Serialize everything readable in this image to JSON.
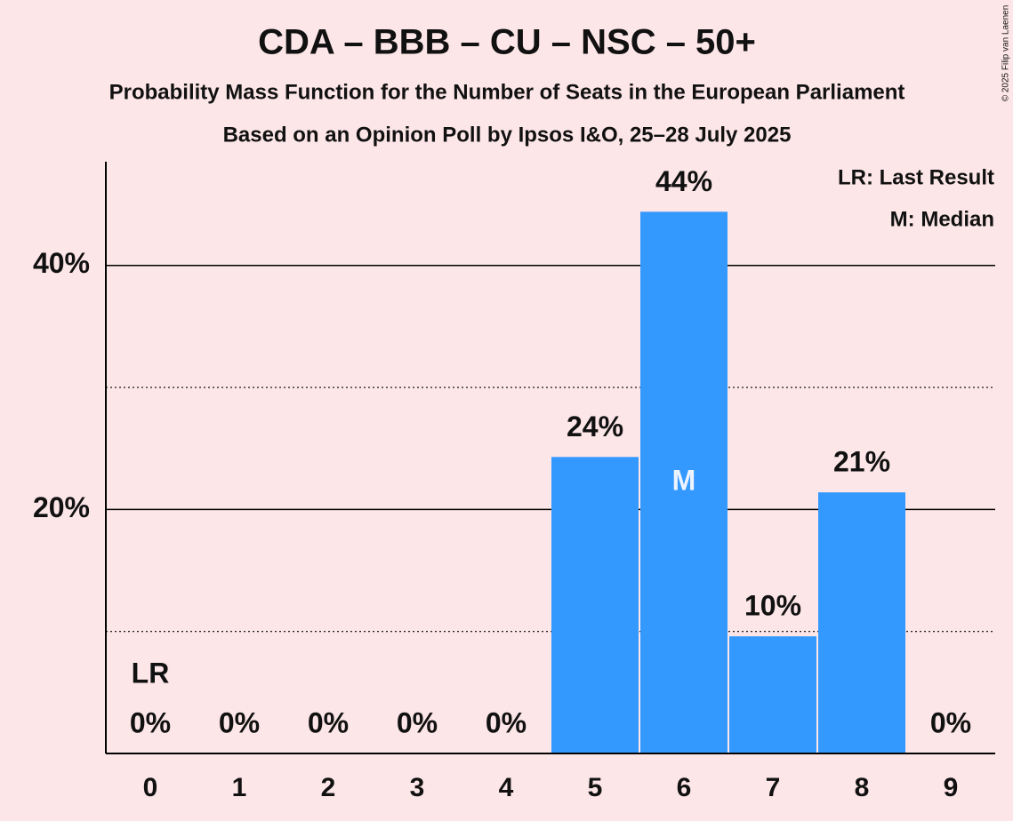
{
  "chart_data": {
    "type": "bar",
    "title": "CDA – BBB – CU – NSC – 50+",
    "subtitle": "Probability Mass Function for the Number of Seats in the European Parliament",
    "subtitle2": "Based on an Opinion Poll by Ipsos I&O, 25–28 July 2025",
    "copyright": "© 2025 Filip van Laenen",
    "categories": [
      "0",
      "1",
      "2",
      "3",
      "4",
      "5",
      "6",
      "7",
      "8",
      "9"
    ],
    "values": [
      0,
      0,
      0,
      0,
      0,
      24.3,
      44.4,
      9.6,
      21.4,
      0
    ],
    "value_labels": [
      "0%",
      "0%",
      "0%",
      "0%",
      "0%",
      "24%",
      "44%",
      "10%",
      "21%",
      "0%"
    ],
    "color": "#3399ff",
    "ylim": [
      0,
      48.5
    ],
    "yticks": [
      {
        "value": 20,
        "label": "20%"
      },
      {
        "value": 40,
        "label": "40%"
      }
    ],
    "yminor": [
      10,
      30
    ],
    "grid": true,
    "last_result": 0,
    "median": 6,
    "last_result_label": "LR",
    "median_label": "M",
    "legend": [
      "LR: Last Result",
      "M: Median"
    ]
  }
}
